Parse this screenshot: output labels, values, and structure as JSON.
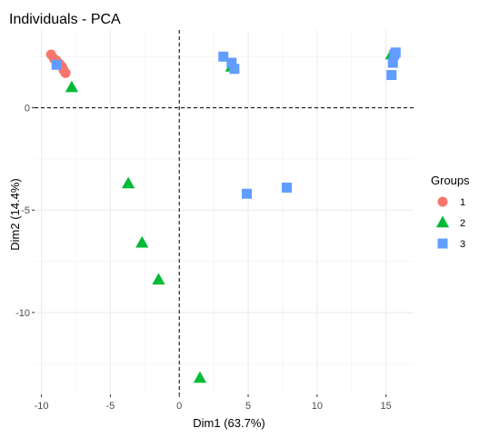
{
  "chart_data": {
    "type": "scatter",
    "title": "Individuals - PCA",
    "xlabel": "Dim1 (63.7%)",
    "ylabel": "Dim2 (14.4%)",
    "xlim": [
      -10.5,
      17
    ],
    "ylim": [
      -14,
      3.8
    ],
    "x_ticks": [
      -10,
      -5,
      0,
      5,
      10,
      15
    ],
    "y_ticks": [
      -10,
      -5,
      0
    ],
    "x_tick_labels": [
      "-10",
      "-5",
      "0",
      "5",
      "10",
      "15"
    ],
    "y_tick_labels": [
      "-10",
      "-5",
      "0"
    ],
    "grid": true,
    "reference_lines": {
      "x": 0,
      "y": 0,
      "style": "dashed"
    },
    "legend": {
      "title": "Groups",
      "position": "right"
    },
    "series": [
      {
        "name": "1",
        "color": "#F8766D",
        "marker": "circle",
        "points": [
          {
            "x": -9.3,
            "y": 2.6
          },
          {
            "x": -9.1,
            "y": 2.4
          },
          {
            "x": -8.9,
            "y": 2.3
          },
          {
            "x": -8.7,
            "y": 2.15
          },
          {
            "x": -8.5,
            "y": 2.0
          },
          {
            "x": -8.4,
            "y": 1.85
          },
          {
            "x": -8.25,
            "y": 1.7
          }
        ]
      },
      {
        "name": "2",
        "color": "#00BA38",
        "marker": "triangle",
        "points": [
          {
            "x": -7.8,
            "y": 1.0
          },
          {
            "x": -3.7,
            "y": -3.7
          },
          {
            "x": -2.7,
            "y": -6.6
          },
          {
            "x": -1.5,
            "y": -8.4
          },
          {
            "x": 1.5,
            "y": -13.2
          },
          {
            "x": 3.8,
            "y": 2.0
          },
          {
            "x": 15.4,
            "y": 2.6
          }
        ]
      },
      {
        "name": "3",
        "color": "#619CFF",
        "marker": "square",
        "points": [
          {
            "x": -8.9,
            "y": 2.1
          },
          {
            "x": 3.2,
            "y": 2.5
          },
          {
            "x": 3.8,
            "y": 2.2
          },
          {
            "x": 4.0,
            "y": 1.9
          },
          {
            "x": 4.9,
            "y": -4.2
          },
          {
            "x": 7.8,
            "y": -3.9
          },
          {
            "x": 15.4,
            "y": 1.6
          },
          {
            "x": 15.5,
            "y": 2.2
          },
          {
            "x": 15.6,
            "y": 2.6
          },
          {
            "x": 15.7,
            "y": 2.7
          }
        ]
      }
    ]
  }
}
